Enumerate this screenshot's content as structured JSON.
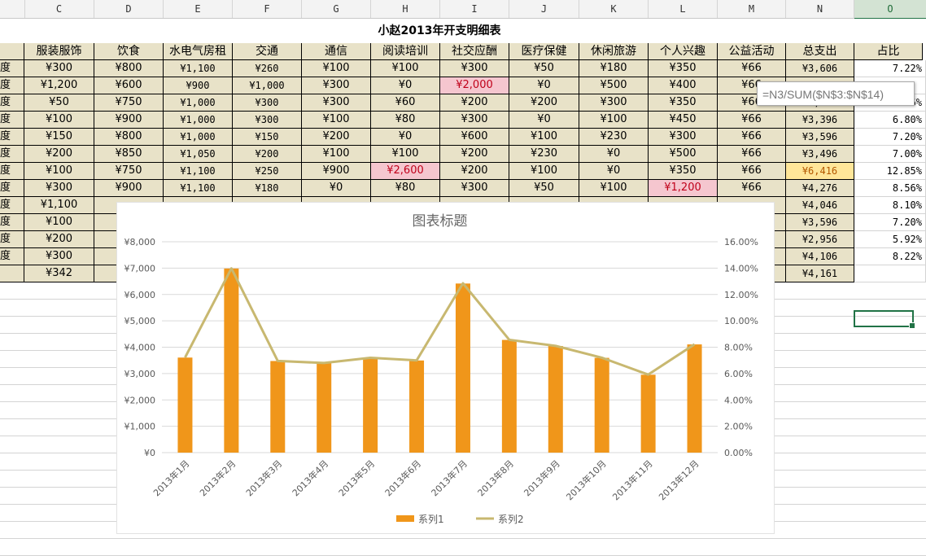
{
  "columns": [
    "C",
    "D",
    "E",
    "F",
    "G",
    "H",
    "I",
    "J",
    "K",
    "L",
    "M",
    "N",
    "O"
  ],
  "active_column": "O",
  "sheet_title": "小赵2013年开支明细表",
  "headers": [
    "服装服饰",
    "饮食",
    "水电气房租",
    "交通",
    "通信",
    "阅读培训",
    "社交应酬",
    "医疗保健",
    "休闲旅游",
    "个人兴趣",
    "公益活动",
    "总支出",
    "占比"
  ],
  "row_label_fragment": "度",
  "rows": [
    {
      "cells": [
        "¥300",
        "¥800",
        "¥1,100",
        "¥260",
        "¥100",
        "¥100",
        "¥300",
        "¥50",
        "¥180",
        "¥350",
        "¥66",
        "¥3,606",
        "7.22%"
      ]
    },
    {
      "cells": [
        "¥1,200",
        "¥600",
        "¥900",
        "¥1,000",
        "¥300",
        "¥0",
        "¥2,000",
        "¥0",
        "¥500",
        "¥400",
        "¥66",
        "",
        ""
      ],
      "pink": [
        6
      ]
    },
    {
      "cells": [
        "¥50",
        "¥750",
        "¥1,000",
        "¥300",
        "¥300",
        "¥60",
        "¥200",
        "¥200",
        "¥300",
        "¥350",
        "¥66",
        "¥3,476",
        "6.96%"
      ]
    },
    {
      "cells": [
        "¥100",
        "¥900",
        "¥1,000",
        "¥300",
        "¥100",
        "¥80",
        "¥300",
        "¥0",
        "¥100",
        "¥450",
        "¥66",
        "¥3,396",
        "6.80%"
      ]
    },
    {
      "cells": [
        "¥150",
        "¥800",
        "¥1,000",
        "¥150",
        "¥200",
        "¥0",
        "¥600",
        "¥100",
        "¥230",
        "¥300",
        "¥66",
        "¥3,596",
        "7.20%"
      ]
    },
    {
      "cells": [
        "¥200",
        "¥850",
        "¥1,050",
        "¥200",
        "¥100",
        "¥100",
        "¥200",
        "¥230",
        "¥0",
        "¥500",
        "¥66",
        "¥3,496",
        "7.00%"
      ]
    },
    {
      "cells": [
        "¥100",
        "¥750",
        "¥1,100",
        "¥250",
        "¥900",
        "¥2,600",
        "¥200",
        "¥100",
        "¥0",
        "¥350",
        "¥66",
        "¥6,416",
        "12.85%"
      ],
      "pink": [
        5
      ],
      "yellow": [
        11
      ]
    },
    {
      "cells": [
        "¥300",
        "¥900",
        "¥1,100",
        "¥180",
        "¥0",
        "¥80",
        "¥300",
        "¥50",
        "¥100",
        "¥1,200",
        "¥66",
        "¥4,276",
        "8.56%"
      ],
      "pink": [
        9
      ]
    },
    {
      "cells": [
        "¥1,100",
        "",
        "",
        "",
        "",
        "",
        "",
        "",
        "",
        "",
        "",
        "¥4,046",
        "8.10%"
      ]
    },
    {
      "cells": [
        "¥100",
        "",
        "",
        "",
        "",
        "",
        "",
        "",
        "",
        "",
        "",
        "¥3,596",
        "7.20%"
      ]
    },
    {
      "cells": [
        "¥200",
        "",
        "",
        "",
        "",
        "",
        "",
        "",
        "",
        "",
        "",
        "¥2,956",
        "5.92%"
      ]
    },
    {
      "cells": [
        "¥300",
        "¥",
        "",
        "",
        "",
        "",
        "",
        "",
        "",
        "",
        "",
        "¥4,106",
        "8.22%"
      ]
    },
    {
      "cells": [
        "¥342",
        "",
        "",
        "",
        "",
        "",
        "",
        "",
        "",
        "",
        "",
        "¥4,161",
        ""
      ]
    }
  ],
  "formula_tooltip": "=N3/SUM($N$3:$N$14)",
  "chart_data": {
    "type": "bar",
    "title": "图表标题",
    "categories": [
      "2013年1月",
      "2013年2月",
      "2013年3月",
      "2013年4月",
      "2013年5月",
      "2013年6月",
      "2013年7月",
      "2013年8月",
      "2013年9月",
      "2013年10月",
      "2013年11月",
      "2013年12月"
    ],
    "series": [
      {
        "name": "系列1",
        "type": "bar",
        "axis": "left",
        "color": "#f0961a",
        "values": [
          3606,
          6986,
          3476,
          3396,
          3596,
          3496,
          6416,
          4276,
          4046,
          3596,
          2956,
          4106
        ]
      },
      {
        "name": "系列2",
        "type": "line",
        "axis": "right",
        "color": "#c8b870",
        "values": [
          7.22,
          13.98,
          6.96,
          6.8,
          7.2,
          7.0,
          12.85,
          8.56,
          8.1,
          7.2,
          5.92,
          8.22
        ]
      }
    ],
    "ylim_left": [
      0,
      8000
    ],
    "ylim_right": [
      0,
      16
    ],
    "yticks_left": [
      "¥0",
      "¥1,000",
      "¥2,000",
      "¥3,000",
      "¥4,000",
      "¥5,000",
      "¥6,000",
      "¥7,000",
      "¥8,000"
    ],
    "yticks_right": [
      "0.00%",
      "2.00%",
      "4.00%",
      "6.00%",
      "8.00%",
      "10.00%",
      "12.00%",
      "14.00%",
      "16.00%"
    ],
    "legend_position": "bottom",
    "grid": true
  }
}
